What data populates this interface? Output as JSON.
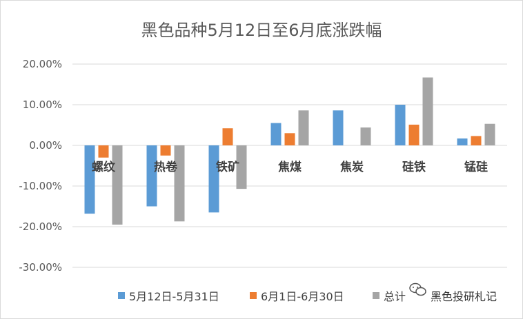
{
  "chart_data": {
    "type": "bar",
    "title": "黑色品种5月12日至6月底涨跌幅",
    "categories": [
      "螺纹",
      "热卷",
      "铁矿",
      "焦煤",
      "焦炭",
      "硅铁",
      "锰硅"
    ],
    "series": [
      {
        "name": "5月12日-5月31日",
        "color": "#5B9BD5",
        "values": [
          -16.8,
          -15.0,
          -16.5,
          5.5,
          8.6,
          10.0,
          1.7
        ]
      },
      {
        "name": "6月1日-6月30日",
        "color": "#ED7D31",
        "values": [
          -3.0,
          -2.5,
          4.2,
          3.0,
          0.0,
          5.1,
          2.3
        ]
      },
      {
        "name": "总计",
        "color": "#A5A5A5",
        "values": [
          -19.5,
          -18.7,
          -10.7,
          8.6,
          4.4,
          16.7,
          5.3
        ]
      }
    ],
    "ylim": [
      -30,
      20
    ],
    "yticks": [
      20,
      10,
      0,
      -10,
      -20,
      -30
    ],
    "ytick_labels": [
      "20.00%",
      "10.00%",
      "0.00%",
      "-10.00%",
      "-20.00%",
      "-30.00%"
    ],
    "grid": true,
    "legend_position": "bottom"
  },
  "watermark": {
    "text": "黑色投研札记",
    "icon": "wechat-icon"
  }
}
